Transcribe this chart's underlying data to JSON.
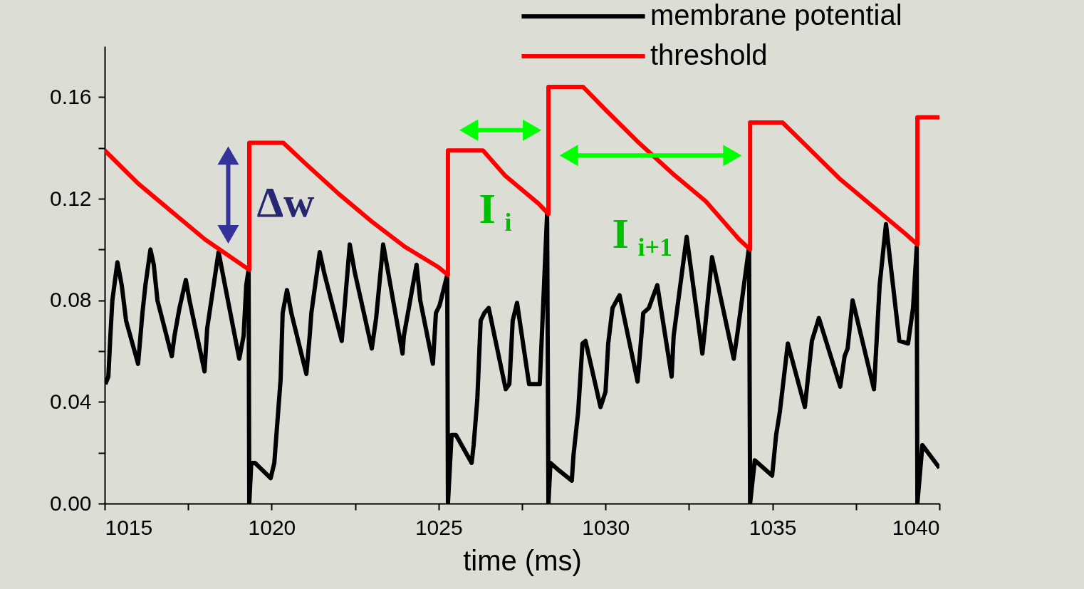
{
  "chart_data": {
    "type": "line",
    "xlabel": "time (ms)",
    "xlim": [
      1015,
      1040
    ],
    "ylim": [
      0,
      0.18
    ],
    "xticks": [
      1015,
      {
        "value": 1017.5,
        "label": null
      },
      1020,
      {
        "value": 1022.5,
        "label": null
      },
      1025,
      {
        "value": 1027.5,
        "label": null
      },
      1030,
      {
        "value": 1032.5,
        "label": null
      },
      1035,
      {
        "value": 1037.5,
        "label": null
      },
      1040
    ],
    "yticks": [
      {
        "value": 0,
        "label": "0.00"
      },
      {
        "value": 0.02,
        "label": null
      },
      {
        "value": 0.04,
        "label": "0.04"
      },
      {
        "value": 0.06,
        "label": null
      },
      {
        "value": 0.08,
        "label": "0.08"
      },
      {
        "value": 0.1,
        "label": null
      },
      {
        "value": 0.12,
        "label": "0.12"
      },
      {
        "value": 0.14,
        "label": null
      },
      {
        "value": 0.16,
        "label": "0.16"
      }
    ],
    "legend": "top right",
    "line_style": "solid",
    "series": [
      {
        "name": "membrane potential",
        "color": "#000000",
        "x": [
          1015.02,
          1015.11,
          1015.17,
          1015.23,
          1015.38,
          1015.51,
          1015.64,
          1016.0,
          1016.13,
          1016.22,
          1016.37,
          1016.47,
          1016.58,
          1017.01,
          1017.09,
          1017.24,
          1017.43,
          1017.54,
          1017.99,
          1018.07,
          1018.41,
          1018.69,
          1019.03,
          1019.16,
          1019.24,
          1019.31,
          1019.33,
          1019.39,
          1019.5,
          1019.97,
          1020.08,
          1020.16,
          1020.27,
          1020.33,
          1020.46,
          1020.59,
          1021.04,
          1021.14,
          1021.19,
          1021.44,
          1021.57,
          1022.0,
          1022.1,
          1022.34,
          1022.49,
          1023.0,
          1023.13,
          1023.34,
          1023.49,
          1023.92,
          1023.96,
          1024.34,
          1024.45,
          1024.83,
          1024.92,
          1025.03,
          1025.26,
          1025.28,
          1025.39,
          1025.52,
          1025.99,
          1026.05,
          1026.16,
          1026.26,
          1026.37,
          1026.5,
          1027.01,
          1027.12,
          1027.22,
          1027.35,
          1027.71,
          1028.03,
          1028.25,
          1028.29,
          1028.35,
          1028.61,
          1028.99,
          1029.04,
          1029.18,
          1029.31,
          1029.4,
          1029.85,
          1030.0,
          1030.08,
          1030.21,
          1030.42,
          1030.96,
          1031.13,
          1031.3,
          1031.38,
          1031.55,
          1031.98,
          1032.04,
          1032.43,
          1032.9,
          1032.98,
          1033.19,
          1033.84,
          1033.94,
          1034.3,
          1034.33,
          1034.47,
          1034.99,
          1035.11,
          1035.22,
          1035.46,
          1035.97,
          1036.18,
          1036.39,
          1037.03,
          1037.16,
          1037.25,
          1037.4,
          1038.04,
          1038.21,
          1038.4,
          1038.8,
          1039.06,
          1039.21,
          1039.32,
          1039.34,
          1039.49,
          1040.0
        ],
        "values": [
          0.047,
          0.05,
          0.066,
          0.08,
          0.095,
          0.086,
          0.072,
          0.055,
          0.075,
          0.086,
          0.1,
          0.094,
          0.08,
          0.058,
          0.066,
          0.077,
          0.088,
          0.08,
          0.052,
          0.069,
          0.099,
          0.08,
          0.057,
          0.066,
          0.086,
          0.092,
          0.0,
          0.016,
          0.016,
          0.01,
          0.016,
          0.03,
          0.049,
          0.075,
          0.084,
          0.075,
          0.051,
          0.066,
          0.075,
          0.099,
          0.091,
          0.069,
          0.064,
          0.102,
          0.091,
          0.061,
          0.073,
          0.102,
          0.091,
          0.059,
          0.066,
          0.094,
          0.08,
          0.055,
          0.075,
          0.078,
          0.09,
          0.0,
          0.027,
          0.027,
          0.016,
          0.023,
          0.041,
          0.072,
          0.075,
          0.077,
          0.045,
          0.047,
          0.072,
          0.079,
          0.047,
          0.047,
          0.114,
          0.0,
          0.016,
          0.013,
          0.009,
          0.019,
          0.036,
          0.063,
          0.064,
          0.038,
          0.044,
          0.063,
          0.077,
          0.082,
          0.048,
          0.075,
          0.077,
          0.08,
          0.086,
          0.05,
          0.066,
          0.105,
          0.059,
          0.069,
          0.097,
          0.057,
          0.066,
          0.101,
          0.0,
          0.017,
          0.011,
          0.027,
          0.036,
          0.063,
          0.038,
          0.064,
          0.073,
          0.046,
          0.058,
          0.061,
          0.08,
          0.045,
          0.086,
          0.11,
          0.064,
          0.063,
          0.077,
          0.101,
          0.0,
          0.023,
          0.014
        ]
      },
      {
        "name": "threshold",
        "color": "#ff0000",
        "x": [
          1015.0,
          1016.0,
          1017.0,
          1018.0,
          1019.0,
          1019.33,
          1019.33,
          1020.35,
          1021.0,
          1022.0,
          1023.0,
          1024.0,
          1025.0,
          1025.28,
          1025.28,
          1026.33,
          1027.0,
          1028.0,
          1028.29,
          1028.29,
          1029.33,
          1030.0,
          1031.0,
          1032.0,
          1033.0,
          1034.0,
          1034.33,
          1034.33,
          1035.3,
          1036.0,
          1037.0,
          1038.0,
          1039.0,
          1039.34,
          1039.34,
          1040.0
        ],
        "values": [
          0.139,
          0.126,
          0.115,
          0.104,
          0.095,
          0.092,
          0.142,
          0.142,
          0.134,
          0.122,
          0.111,
          0.101,
          0.093,
          0.09,
          0.139,
          0.139,
          0.129,
          0.118,
          0.114,
          0.164,
          0.164,
          0.155,
          0.142,
          0.13,
          0.119,
          0.104,
          0.1,
          0.15,
          0.15,
          0.141,
          0.128,
          0.117,
          0.106,
          0.102,
          0.152,
          0.152
        ]
      },
      {
        "color": "#333399",
        "marker": "triangle",
        "x": [
          1018.7,
          1018.7
        ],
        "values": [
          0.106,
          0.137
        ]
      },
      {
        "color": "#00ff00",
        "marker": "triangle",
        "x": [
          1025.9,
          1027.8
        ],
        "values": [
          0.147,
          0.147
        ]
      },
      {
        "color": "#00ff00",
        "marker": "triangle",
        "x": [
          1028.9,
          1033.8
        ],
        "values": [
          0.137,
          0.137
        ]
      }
    ],
    "annotations": [
      "Δw",
      "I$_{i}$",
      "I$_{i+1}$"
    ]
  }
}
